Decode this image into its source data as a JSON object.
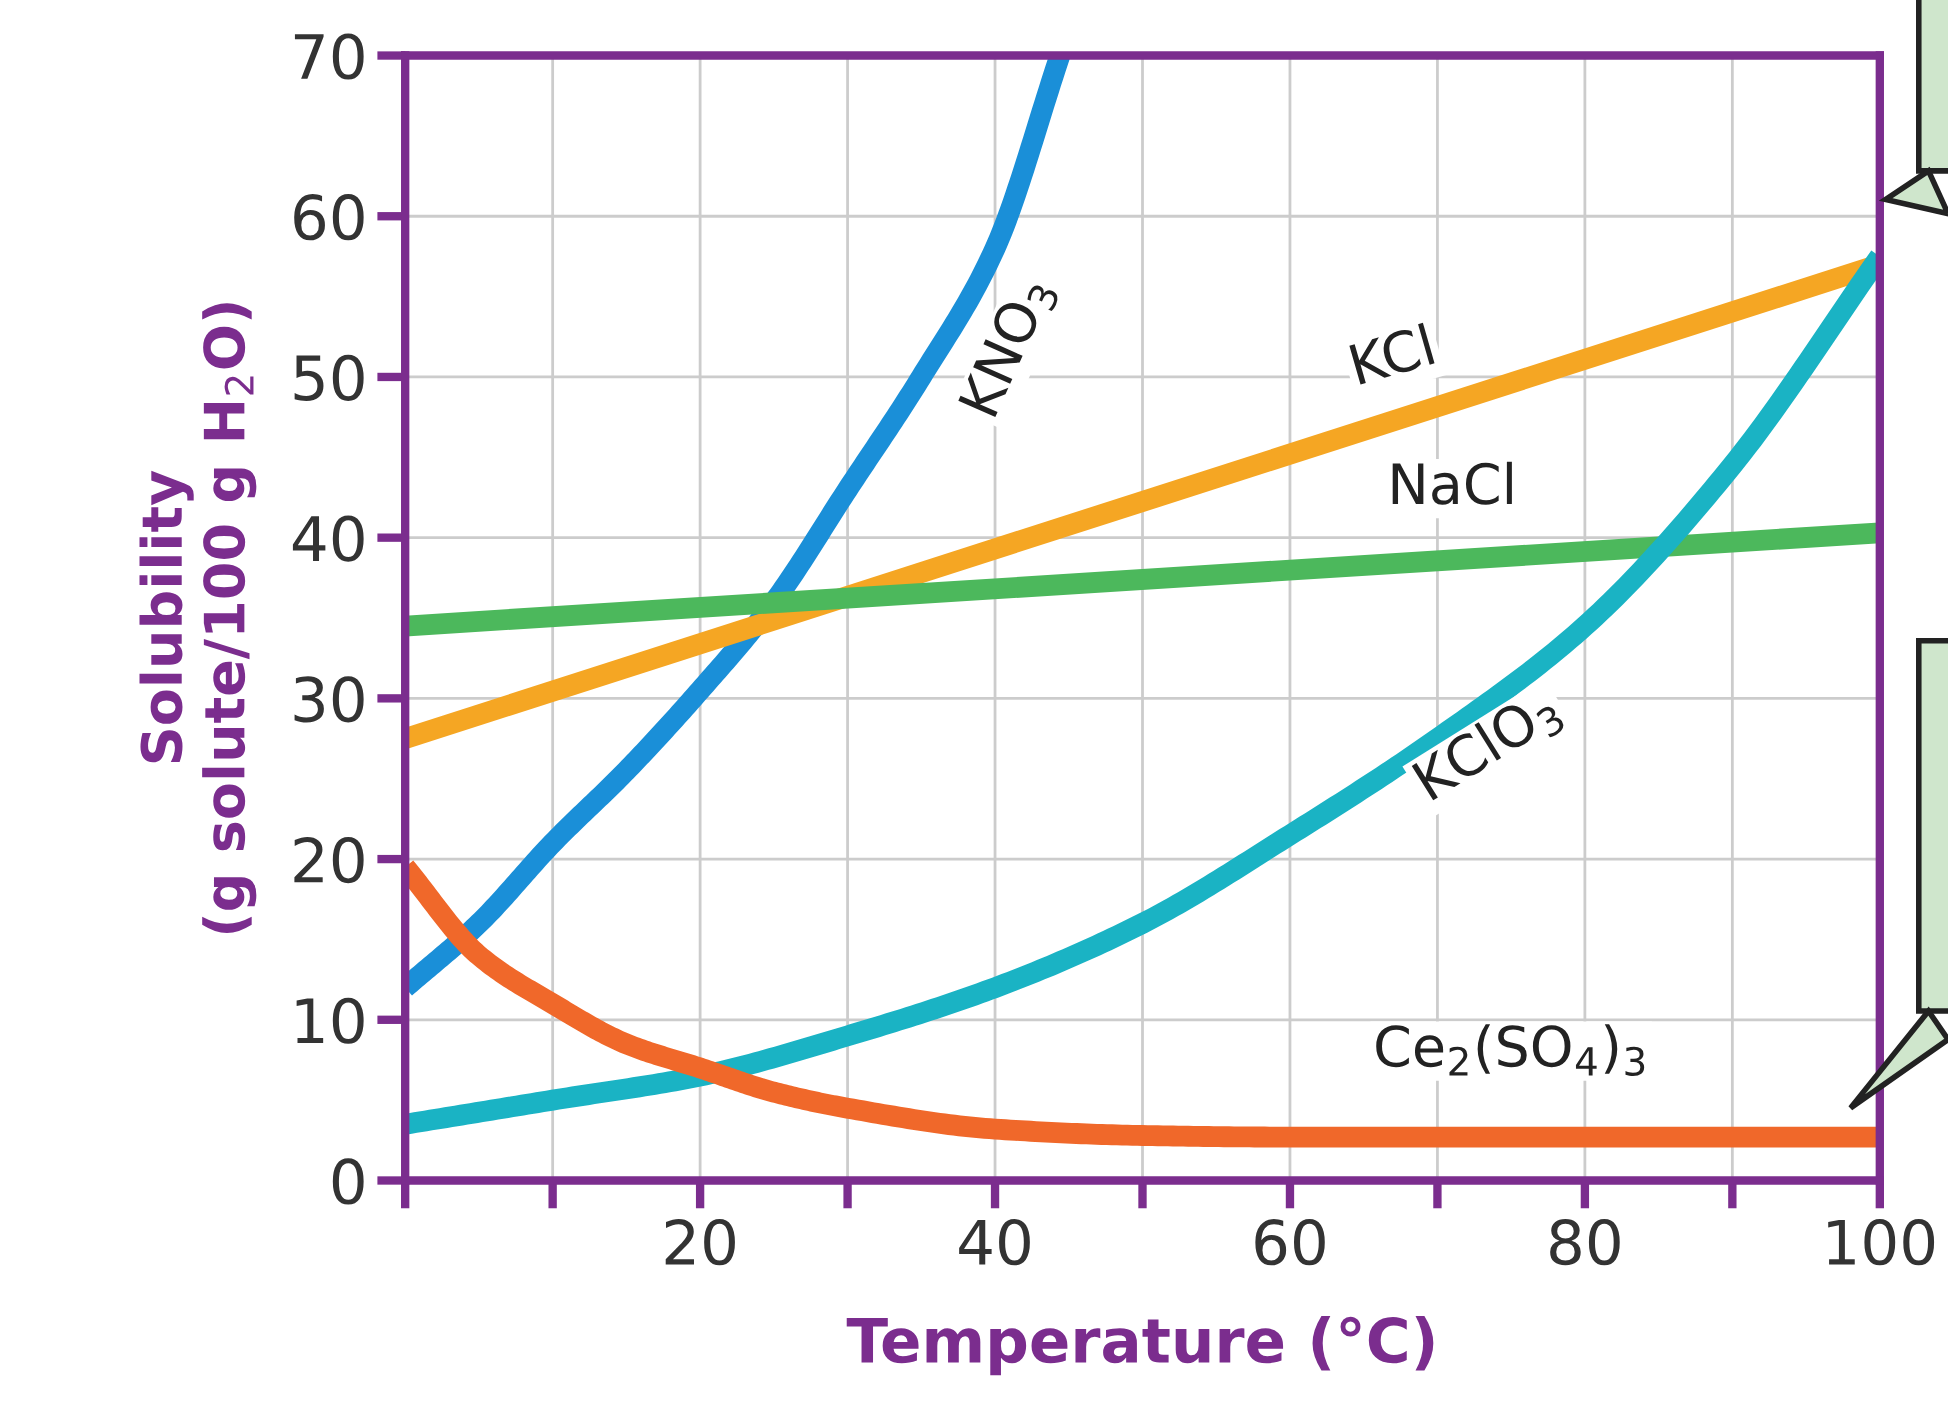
{
  "chart_data": {
    "type": "line",
    "xlabel": "Temperature (°C)",
    "ylabel": "Solubility\n(g solute/100 g H$_{2}$O)",
    "series": [
      {
        "name": "KNO$_{3}$",
        "color": "#1a8fd8",
        "x": [
          0,
          5,
          10,
          15,
          20,
          25,
          30,
          35,
          40,
          44.4
        ],
        "values": [
          12,
          16,
          21,
          25.5,
          30.5,
          36,
          43,
          50,
          58,
          70
        ]
      },
      {
        "name": "KCl",
        "color": "#f5a623",
        "x": [
          0,
          100
        ],
        "values": [
          27.5,
          57
        ]
      },
      {
        "name": "NaCl",
        "color": "#4cb85c",
        "x": [
          0,
          100
        ],
        "values": [
          34.5,
          40.3
        ]
      },
      {
        "name": "KClO$_{3}$",
        "color": "#1ab3c4",
        "x": [
          0,
          10,
          20,
          30,
          40,
          50,
          60,
          70,
          80,
          90,
          100
        ],
        "values": [
          3.5,
          5,
          6.5,
          9,
          12,
          16,
          21.5,
          27.5,
          34.5,
          44.5,
          57.5
        ]
      },
      {
        "name": "Ce$_{2}$(SO$_{4}$)$_{3}$",
        "color": "#f0682a",
        "x": [
          0,
          5,
          10,
          15,
          20,
          25,
          30,
          40,
          50,
          60,
          80,
          100
        ],
        "values": [
          19.5,
          14,
          11,
          8.5,
          7,
          5.5,
          4.5,
          3.2,
          2.8,
          2.7,
          2.7,
          2.7
        ]
      }
    ],
    "xlim": [
      0,
      100
    ],
    "ylim": [
      0,
      70
    ],
    "xticks": [
      {
        "value": 0,
        "label": null
      },
      {
        "value": 10,
        "label": null
      },
      20,
      {
        "value": 30,
        "label": null
      },
      40,
      {
        "value": 50,
        "label": null
      },
      60,
      {
        "value": 70,
        "label": null
      },
      80,
      {
        "value": 90,
        "label": null
      },
      100
    ],
    "yticks": [
      0,
      10,
      20,
      30,
      40,
      50,
      60,
      70
    ],
    "grid": true,
    "marker": "none",
    "line_style": "solid"
  }
}
